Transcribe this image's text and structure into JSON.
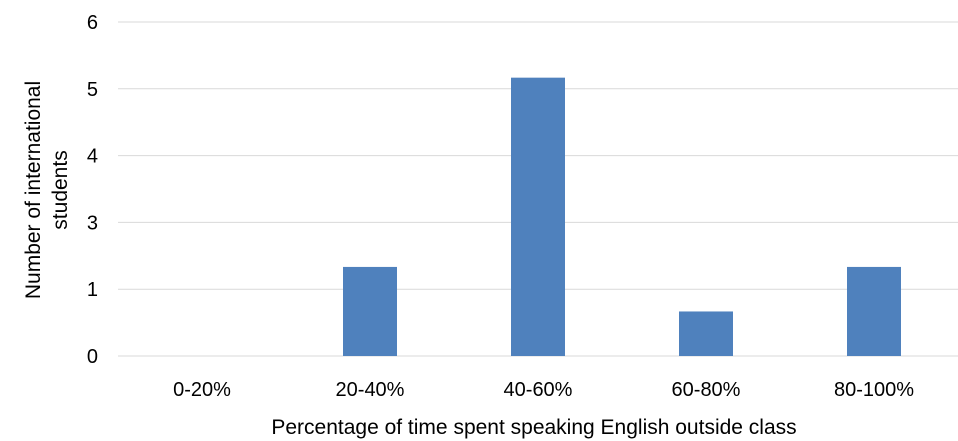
{
  "chart_data": {
    "type": "bar",
    "title": "",
    "categories": [
      "0-20%",
      "20-40%",
      "40-60%",
      "60-80%",
      "80-100%"
    ],
    "values": [
      0,
      1.6,
      5,
      0.8,
      1.6
    ],
    "yticks": [
      "0",
      "1",
      "3",
      "4",
      "5",
      "6"
    ],
    "ylim": [
      0,
      6
    ],
    "xlabel": "Percentage of time spent speaking English outside class",
    "ylabel_lines": [
      "Number of international",
      "students"
    ],
    "grid": true,
    "legend": "none",
    "bar_color": "#4f81bd",
    "grid_color": "#d9d9d9"
  }
}
